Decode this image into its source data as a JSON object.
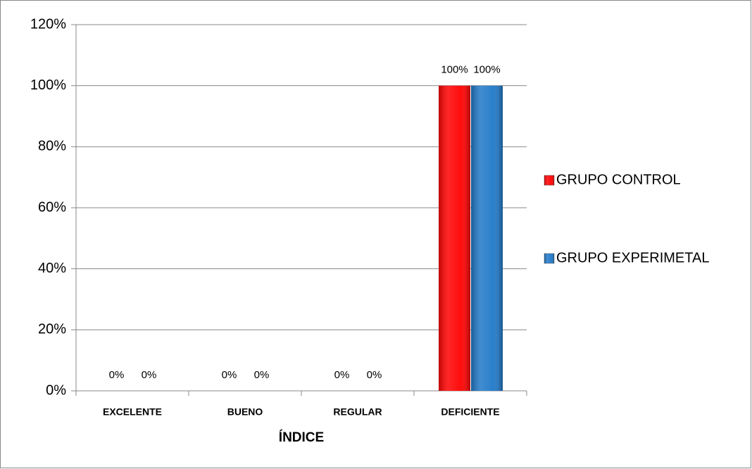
{
  "chart_data": {
    "type": "bar",
    "categories": [
      "EXCELENTE",
      "BUENO",
      "REGULAR",
      "DEFICIENTE"
    ],
    "x_label": "ÍNDICE",
    "series": [
      {
        "name": "GRUPO CONTROL",
        "color": "#ff0000",
        "values": [
          0,
          0,
          0,
          100
        ],
        "value_labels": [
          "0%",
          "0%",
          "0%",
          "100%"
        ]
      },
      {
        "name": "GRUPO EXPERIMETAL",
        "color": "#1f78c8",
        "values": [
          0,
          0,
          0,
          100
        ],
        "value_labels": [
          "0%",
          "0%",
          "0%",
          "100%"
        ]
      }
    ],
    "ylim": [
      0,
      120
    ],
    "yticks": [
      {
        "value": 0,
        "label": "0%"
      },
      {
        "value": 20,
        "label": "20%"
      },
      {
        "value": 40,
        "label": "40%"
      },
      {
        "value": 60,
        "label": "60%"
      },
      {
        "value": 80,
        "label": "80%"
      },
      {
        "value": 100,
        "label": "100%"
      },
      {
        "value": 120,
        "label": "120%"
      }
    ],
    "grid": true,
    "legend": "right"
  }
}
